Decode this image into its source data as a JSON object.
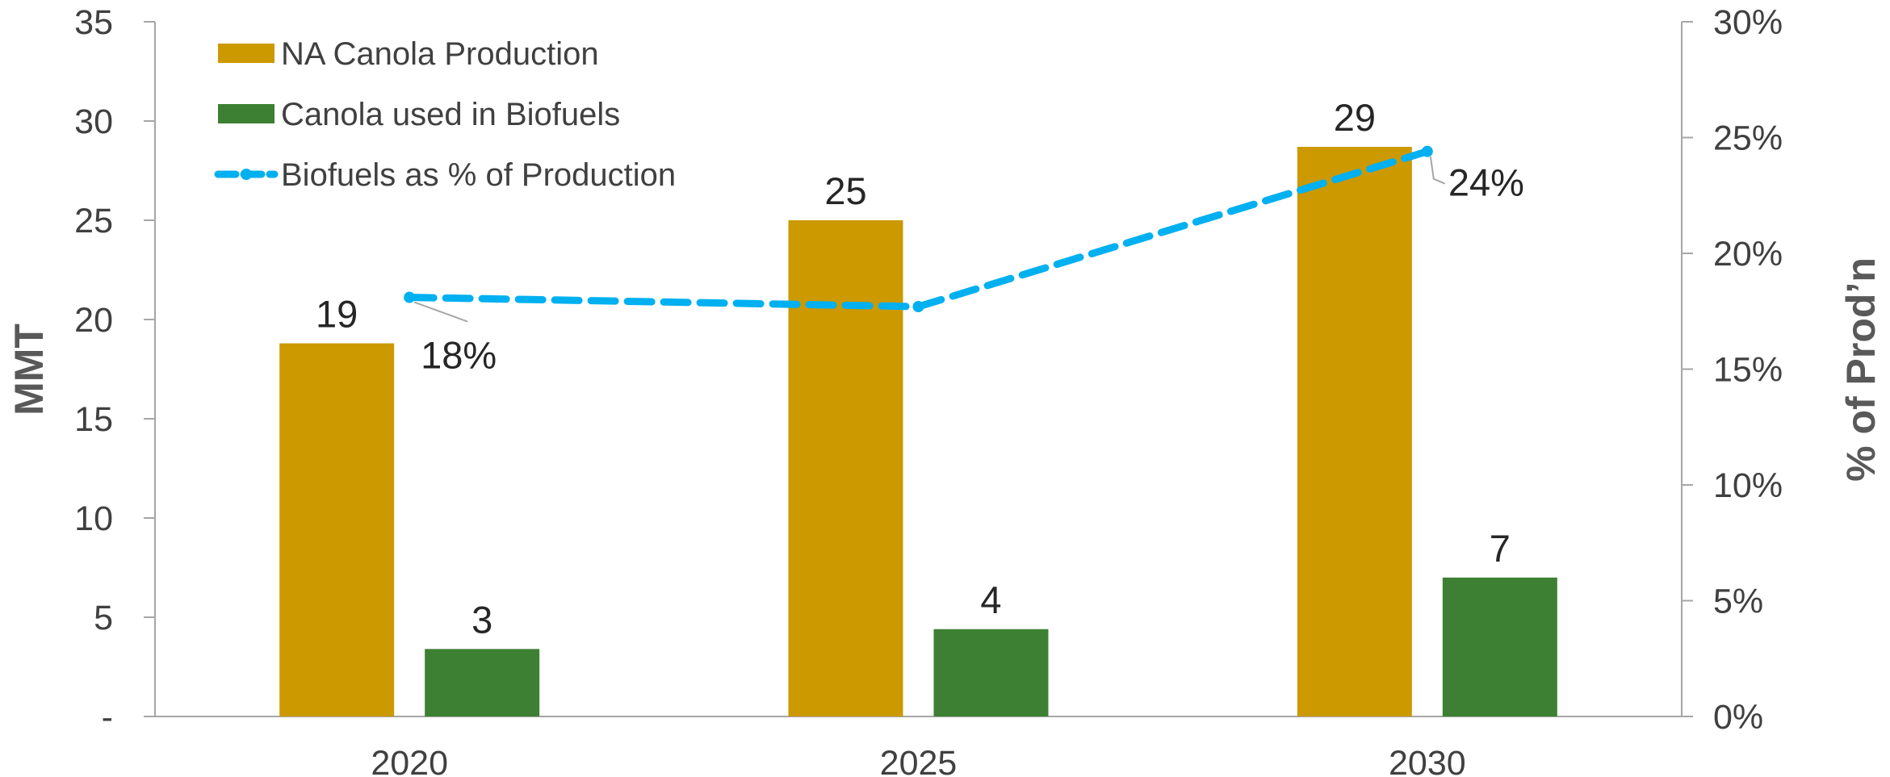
{
  "chart_data": {
    "type": "bar",
    "categories": [
      "2020",
      "2025",
      "2030"
    ],
    "series": [
      {
        "name": "NA Canola Production",
        "chart": "bar",
        "axis": "left",
        "values": [
          18.8,
          25.0,
          28.7
        ],
        "labels": [
          "19",
          "25",
          "29"
        ],
        "color": "#CC9900"
      },
      {
        "name": "Canola used in Biofuels",
        "chart": "bar",
        "axis": "left",
        "values": [
          3.4,
          4.4,
          7.0
        ],
        "labels": [
          "3",
          "4",
          "7"
        ],
        "color": "#3D8033"
      },
      {
        "name": "Biofuels as % of Production",
        "chart": "line",
        "style": "dashed",
        "axis": "right",
        "values": [
          18.1,
          17.7,
          24.4
        ],
        "labels": [
          "18%",
          "",
          "24%"
        ],
        "color": "#00B0F0"
      }
    ],
    "ylabel": "MMT",
    "ylim": [
      0,
      35
    ],
    "yticks": [
      "-",
      "5",
      "10",
      "15",
      "20",
      "25",
      "30",
      "35"
    ],
    "y2label": "% of  Prod’n",
    "y2lim": [
      0,
      30
    ],
    "y2ticks": [
      "0%",
      "5%",
      "10%",
      "15%",
      "20%",
      "25%",
      "30%"
    ],
    "grid": false,
    "legend": "top-left"
  }
}
